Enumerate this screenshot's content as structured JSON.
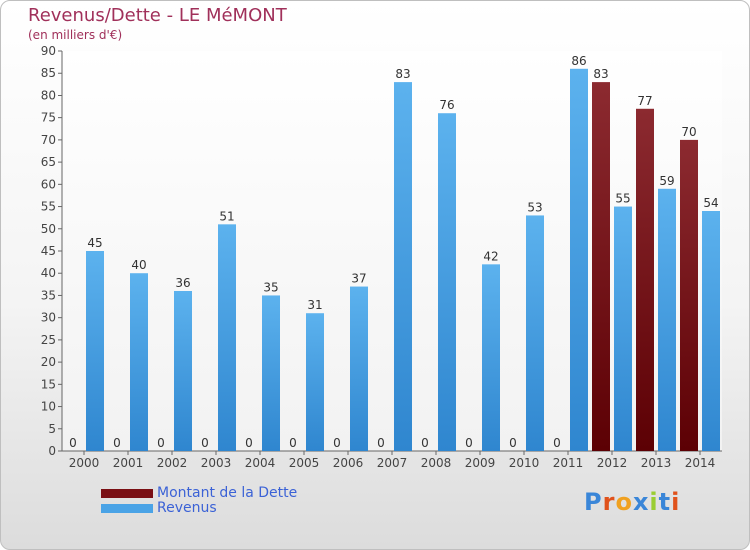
{
  "header": {
    "title": "Revenus/Dette - LE MéMONT",
    "subtitle": "(en milliers d'€)"
  },
  "legend": {
    "items": [
      {
        "label": "Montant de la Dette",
        "color": "#7a0f14"
      },
      {
        "label": "Revenus",
        "color": "#4aa3e6"
      }
    ]
  },
  "logo": {
    "text": "Proxiti",
    "letters": [
      "P",
      "r",
      "o",
      "x",
      "i",
      "t",
      "i"
    ],
    "colors": [
      "#3a86d8",
      "#e0521b",
      "#f0a120",
      "#3a86d8",
      "#9acd32",
      "#3a86d8",
      "#e0521b"
    ]
  },
  "chart_data": {
    "type": "bar",
    "title": "Revenus/Dette - LE MéMONT",
    "ylabel": "(en milliers d'€)",
    "categories": [
      "2000",
      "2001",
      "2002",
      "2003",
      "2004",
      "2005",
      "2006",
      "2007",
      "2008",
      "2009",
      "2010",
      "2011",
      "2012",
      "2013",
      "2014"
    ],
    "series": [
      {
        "name": "Montant de la Dette",
        "color": "#7a0f14",
        "values": [
          0,
          0,
          0,
          0,
          0,
          0,
          0,
          0,
          0,
          0,
          0,
          0,
          83,
          77,
          70
        ]
      },
      {
        "name": "Revenus",
        "color": "#4aa3e6",
        "values": [
          45,
          40,
          36,
          51,
          35,
          31,
          37,
          83,
          76,
          42,
          53,
          86,
          55,
          59,
          54
        ]
      }
    ],
    "ylim": [
      0,
      90
    ],
    "yticks": [
      0,
      5,
      10,
      15,
      20,
      25,
      30,
      35,
      40,
      45,
      50,
      55,
      60,
      65,
      70,
      75,
      80,
      85,
      90
    ],
    "grid": false,
    "legend_position": "bottom-left"
  }
}
